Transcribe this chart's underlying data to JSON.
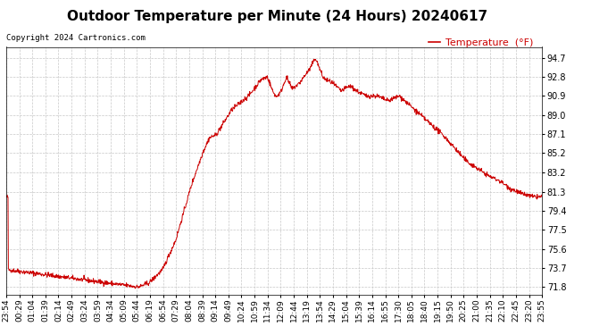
{
  "title": "Outdoor Temperature per Minute (24 Hours) 20240617",
  "copyright_text": "Copyright 2024 Cartronics.com",
  "legend_label": "Temperature  (°F)",
  "background_color": "#ffffff",
  "line_color": "#cc0000",
  "grid_color": "#c8c8c8",
  "legend_color": "#cc0000",
  "yticks": [
    71.8,
    73.7,
    75.6,
    77.5,
    79.4,
    81.3,
    83.2,
    85.2,
    87.1,
    89.0,
    90.9,
    92.8,
    94.7
  ],
  "ylim": [
    71.0,
    95.8
  ],
  "xtick_labels": [
    "23:54",
    "00:29",
    "01:04",
    "01:39",
    "02:14",
    "02:49",
    "03:24",
    "03:59",
    "04:34",
    "05:09",
    "05:44",
    "06:19",
    "06:54",
    "07:29",
    "08:04",
    "08:39",
    "09:14",
    "09:49",
    "10:24",
    "10:59",
    "11:34",
    "12:09",
    "12:44",
    "13:19",
    "13:54",
    "14:29",
    "15:04",
    "15:39",
    "16:14",
    "16:55",
    "17:30",
    "18:05",
    "18:40",
    "19:15",
    "19:50",
    "20:25",
    "21:00",
    "21:35",
    "22:10",
    "22:45",
    "23:20",
    "23:55"
  ],
  "title_fontsize": 11,
  "copyright_fontsize": 6.5,
  "tick_fontsize": 6.5,
  "legend_fontsize": 8
}
